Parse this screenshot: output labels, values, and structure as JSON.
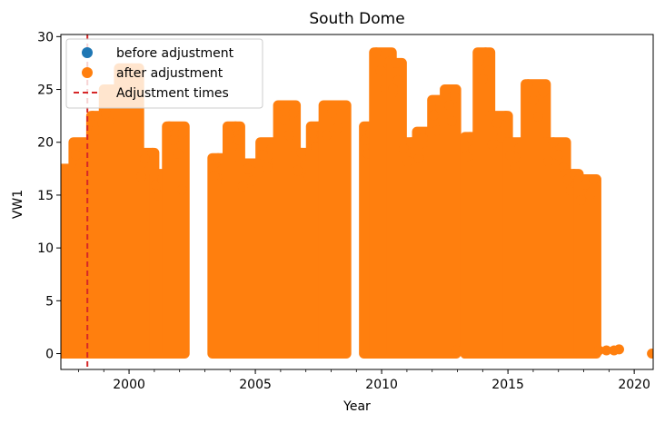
{
  "chart_data": {
    "type": "scatter",
    "title": "South Dome",
    "xlabel": "Year",
    "ylabel": "VW1",
    "xlim": [
      1997.3,
      2020.75
    ],
    "ylim": [
      -1.5,
      30.2
    ],
    "xticks": [
      2000,
      2005,
      2010,
      2015,
      2020
    ],
    "yticks": [
      0,
      5,
      10,
      15,
      20,
      25,
      30
    ],
    "x_minor_ticks_step": 1,
    "grid": false,
    "legend": {
      "placement": "top-left",
      "entries": [
        {
          "label": "before adjustment",
          "marker": "circle",
          "color": "#1f77b4"
        },
        {
          "label": "after adjustment",
          "marker": "circle",
          "color": "#ff7f0e"
        },
        {
          "label": "Adjustment times",
          "marker": "dashed-line",
          "color": "#d62728"
        }
      ]
    },
    "adjustment_times": [
      1998.35
    ],
    "series": [
      {
        "name": "after adjustment",
        "color": "#ff7f0e",
        "segments": [
          {
            "x": [
              1997.3,
              1997.8
            ],
            "ymax": 17.5
          },
          {
            "x": [
              1997.8,
              1998.5
            ],
            "ymax": 20.0
          },
          {
            "x": [
              1998.5,
              1999.0
            ],
            "ymax": 22.5
          },
          {
            "x": [
              1999.0,
              1999.6
            ],
            "ymax": 25.0
          },
          {
            "x": [
              1999.6,
              2000.4
            ],
            "ymax": 27.0
          },
          {
            "x": [
              2000.4,
              2001.0
            ],
            "ymax": 19.0
          },
          {
            "x": [
              2001.0,
              2001.5
            ],
            "ymax": 17.0
          },
          {
            "x": [
              2001.5,
              2002.2
            ],
            "ymax": 21.5
          },
          {
            "x": [
              2003.3,
              2003.9
            ],
            "ymax": 18.5
          },
          {
            "x": [
              2003.9,
              2004.4
            ],
            "ymax": 21.5
          },
          {
            "x": [
              2004.4,
              2005.2
            ],
            "ymax": 18.0
          },
          {
            "x": [
              2005.2,
              2005.9
            ],
            "ymax": 20.0
          },
          {
            "x": [
              2005.9,
              2006.6
            ],
            "ymax": 23.5
          },
          {
            "x": [
              2006.6,
              2007.2
            ],
            "ymax": 19.0
          },
          {
            "x": [
              2007.2,
              2007.7
            ],
            "ymax": 21.5
          },
          {
            "x": [
              2007.7,
              2008.6
            ],
            "ymax": 23.5
          },
          {
            "x": [
              2009.3,
              2009.7
            ],
            "ymax": 21.5
          },
          {
            "x": [
              2009.7,
              2010.4
            ],
            "ymax": 28.5
          },
          {
            "x": [
              2010.4,
              2010.8
            ],
            "ymax": 27.5
          },
          {
            "x": [
              2010.8,
              2011.4
            ],
            "ymax": 20.0
          },
          {
            "x": [
              2011.4,
              2012.0
            ],
            "ymax": 21.0
          },
          {
            "x": [
              2012.0,
              2012.5
            ],
            "ymax": 24.0
          },
          {
            "x": [
              2012.5,
              2012.95
            ],
            "ymax": 25.0
          },
          {
            "x": [
              2013.3,
              2013.8
            ],
            "ymax": 20.5
          },
          {
            "x": [
              2013.8,
              2014.3
            ],
            "ymax": 28.5
          },
          {
            "x": [
              2014.3,
              2015.0
            ],
            "ymax": 22.5
          },
          {
            "x": [
              2015.0,
              2015.7
            ],
            "ymax": 20.0
          },
          {
            "x": [
              2015.7,
              2016.5
            ],
            "ymax": 25.5
          },
          {
            "x": [
              2016.5,
              2017.3
            ],
            "ymax": 20.0
          },
          {
            "x": [
              2017.3,
              2017.8
            ],
            "ymax": 17.0
          },
          {
            "x": [
              2017.8,
              2018.5
            ],
            "ymax": 16.5
          }
        ],
        "sparse_points": [
          {
            "x": 2002.1,
            "y": 15.5
          },
          {
            "x": 2012.95,
            "y": 0.3
          },
          {
            "x": 2018.6,
            "y": 0.3
          },
          {
            "x": 2018.9,
            "y": 0.3
          },
          {
            "x": 2019.2,
            "y": 0.3
          },
          {
            "x": 2019.4,
            "y": 0.4
          },
          {
            "x": 2020.7,
            "y": 0.0
          }
        ]
      }
    ]
  }
}
